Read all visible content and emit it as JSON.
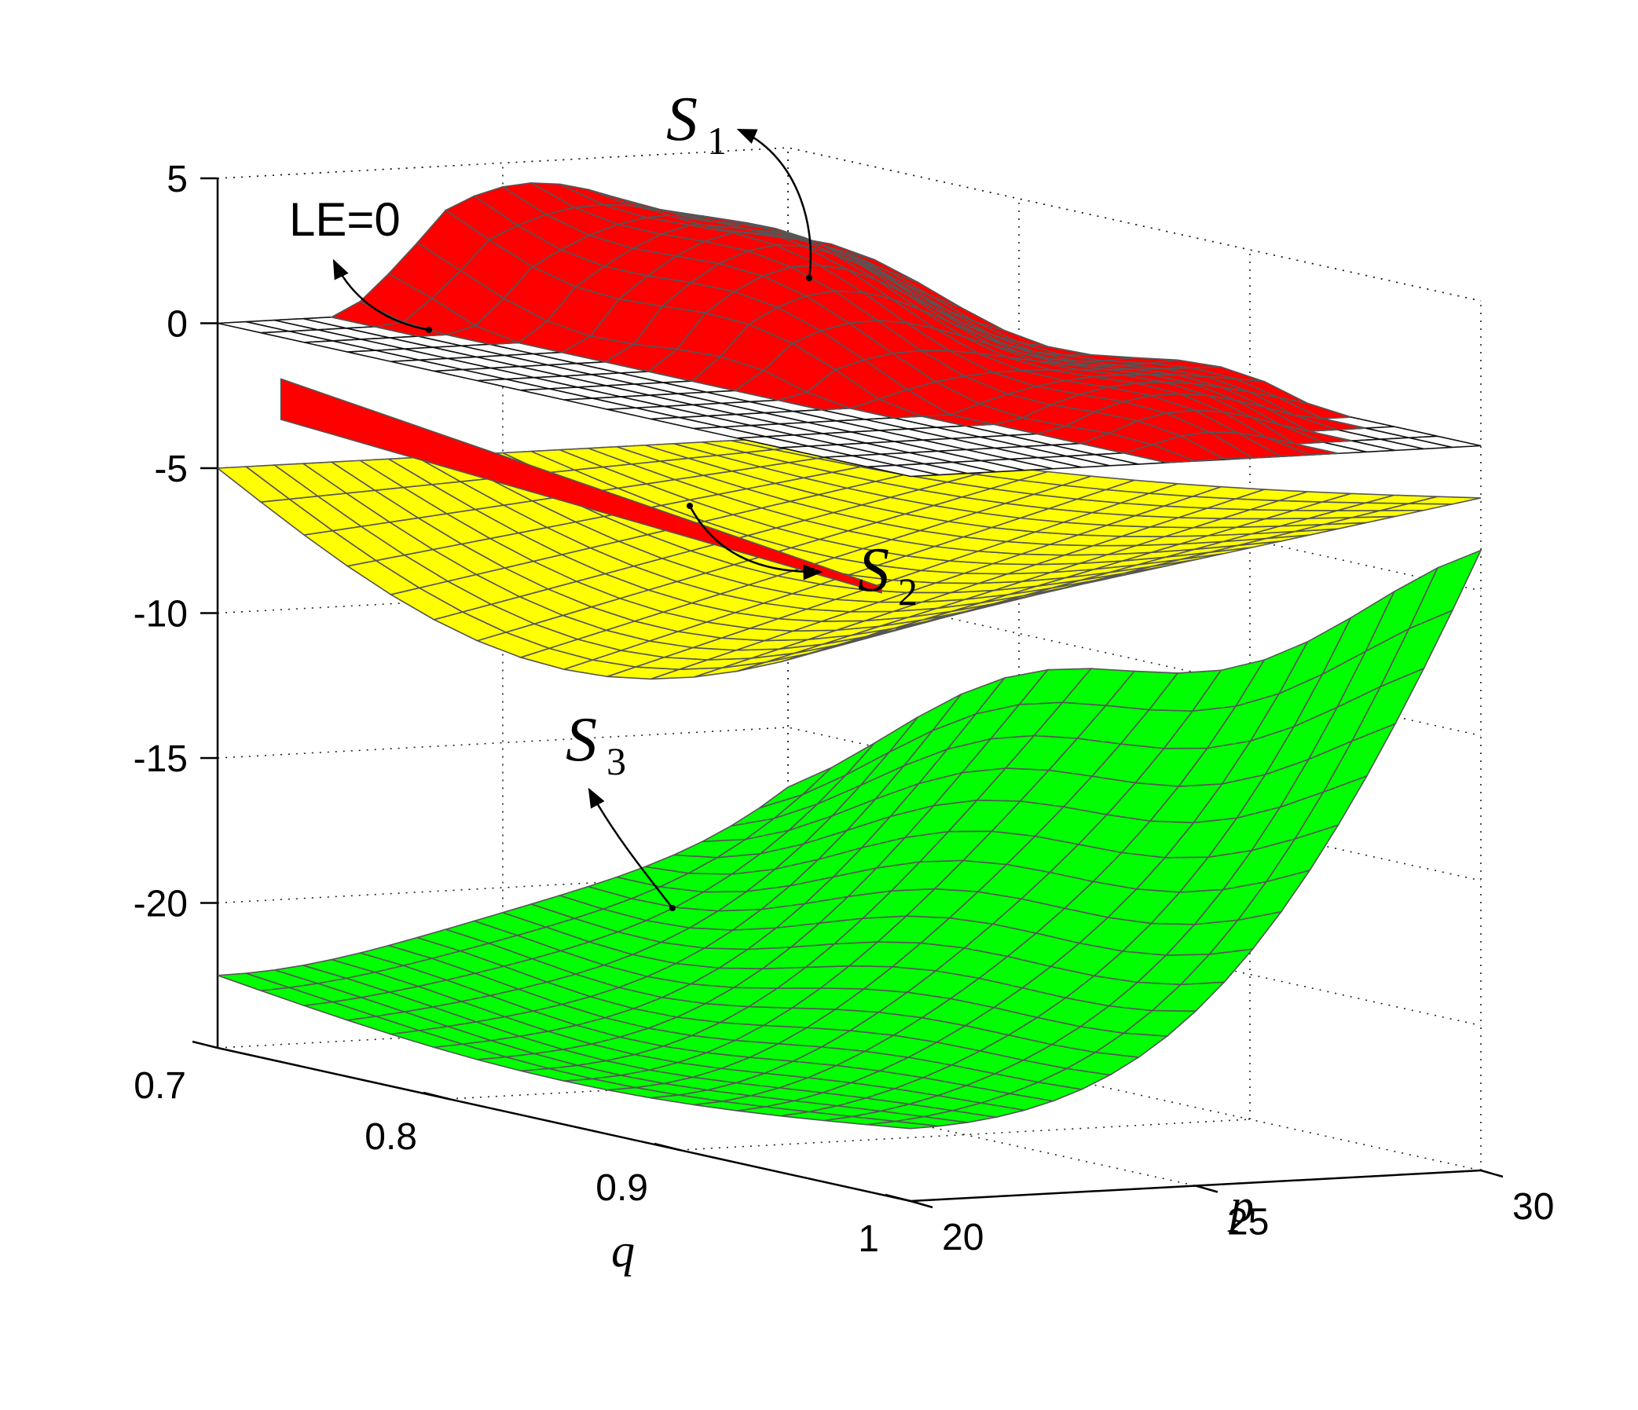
{
  "chart_data": {
    "type": "surface3d",
    "xlabel": "q",
    "ylabel": "p",
    "x_ticks": [
      "0.7",
      "0.8",
      "0.9",
      "1"
    ],
    "y_ticks": [
      "20",
      "25",
      "30"
    ],
    "z_ticks": [
      "5",
      "0",
      "-5",
      "-10",
      "-15",
      "-20"
    ],
    "xlim": [
      0.7,
      1.0
    ],
    "ylim": [
      20,
      30
    ],
    "zlim": [
      -25,
      5
    ],
    "grid": true,
    "surfaces": [
      {
        "name": "LE=0",
        "color": "#ffffff",
        "description_values": {
          "z": 0
        }
      },
      {
        "name": "S1",
        "color": "#ff0000",
        "corner_z": {
          "q0.7_p20": -2.5,
          "q1_p20": -4.5,
          "q0.7_p30": 0.5,
          "q1_p30": 1.2
        },
        "peak_z": 4.5
      },
      {
        "name": "S2",
        "color": "#ffff00",
        "min_z": -9.3,
        "max_z": -1.5
      },
      {
        "name": "S3",
        "color": "#00ff00",
        "min_z": -23.5,
        "max_z": -4
      }
    ],
    "annotations": [
      {
        "id": "le",
        "text": "LE=0"
      },
      {
        "id": "s1",
        "main": "S",
        "sub": "1"
      },
      {
        "id": "s2",
        "main": "S",
        "sub": "2"
      },
      {
        "id": "s3",
        "main": "S",
        "sub": "3"
      }
    ]
  }
}
